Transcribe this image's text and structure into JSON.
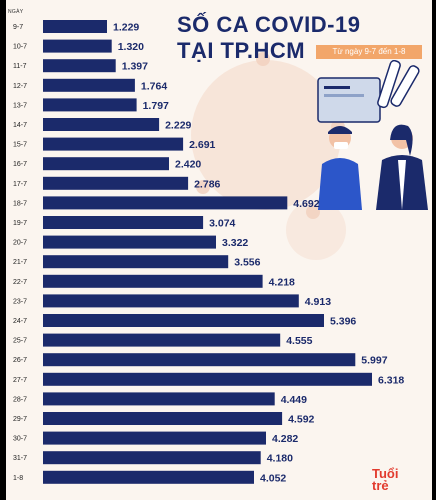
{
  "header": {
    "title_line1": "SỐ CA COVID-19",
    "title_line2": "TẠI TP.HCM",
    "subtitle": "Từ ngày 9-7 đến 1-8",
    "axis_label": "NGÀY"
  },
  "logo": {
    "line1": "Tuổi",
    "line2": "trẻ"
  },
  "colors": {
    "bar": "#1b2a6b",
    "title": "#1b2a6b",
    "subtitle_bg": "#f2a66a",
    "background": "#fbf5ef",
    "logo": "#e23b2e"
  },
  "chart_data": {
    "type": "bar",
    "orientation": "horizontal",
    "categories": [
      "9-7",
      "10-7",
      "11-7",
      "12-7",
      "13-7",
      "14-7",
      "15-7",
      "16-7",
      "17-7",
      "18-7",
      "19-7",
      "20-7",
      "21-7",
      "22-7",
      "23-7",
      "24-7",
      "25-7",
      "26-7",
      "27-7",
      "28-7",
      "29-7",
      "30-7",
      "31-7",
      "1-8"
    ],
    "values": [
      1229,
      1320,
      1397,
      1764,
      1797,
      2229,
      2691,
      2420,
      2786,
      4692,
      3074,
      3322,
      3556,
      4218,
      4913,
      5396,
      4555,
      5997,
      6318,
      4449,
      4592,
      4282,
      4180,
      4052
    ],
    "value_labels": [
      "1.229",
      "1.320",
      "1.397",
      "1.764",
      "1.797",
      "2.229",
      "2.691",
      "2.420",
      "2.786",
      "4.692",
      "3.074",
      "3.322",
      "3.556",
      "4.218",
      "4.913",
      "5.396",
      "4.555",
      "5.997",
      "6.318",
      "4.449",
      "4.592",
      "4.282",
      "4.180",
      "4.052"
    ],
    "title": "SỐ CA COVID-19 TẠI TP.HCM",
    "subtitle": "Từ ngày 9-7 đến 1-8",
    "xlabel": "",
    "ylabel": "NGÀY",
    "xlim": [
      0,
      6318
    ],
    "grid": false,
    "legend": "none"
  }
}
